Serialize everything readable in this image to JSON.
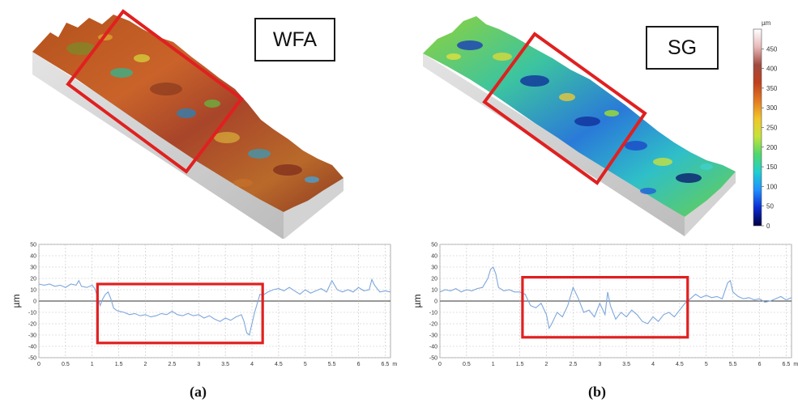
{
  "panels": {
    "a": {
      "tag": "WFA",
      "caption": "(a)"
    },
    "b": {
      "tag": "SG",
      "caption": "(b)"
    }
  },
  "colorbar": {
    "unit": "µm",
    "ticks": [
      "0",
      "50",
      "100",
      "150",
      "200",
      "250",
      "300",
      "350",
      "400",
      "450"
    ],
    "colors": [
      "#000040",
      "#0a2bd0",
      "#1f8fff",
      "#1ecfd0",
      "#4fd86a",
      "#c6e23a",
      "#f1c52a",
      "#e37a22",
      "#c0401e",
      "#a04a40",
      "#e8b8b8",
      "#ffffff"
    ]
  },
  "chart_data": [
    {
      "type": "line",
      "panel": "(a)",
      "ylabel": "µm",
      "xunit": "mm",
      "ylim": [
        -50,
        50
      ],
      "yticks": [
        -50,
        -40,
        -30,
        -20,
        -10,
        0,
        10,
        20,
        30,
        40,
        50
      ],
      "xlim": [
        0,
        6.6
      ],
      "xticks": [
        "0",
        "0.5",
        "1",
        "1.5",
        "2",
        "2.5",
        "3",
        "3.5",
        "4",
        "4.5",
        "5",
        "5.5",
        "6",
        "6.5"
      ],
      "grid": true,
      "line_color": "#7da7dc",
      "highlight": {
        "x": [
          1.1,
          4.2
        ],
        "y": [
          -37,
          15
        ],
        "color": "#e02020"
      },
      "x": [
        0,
        0.1,
        0.2,
        0.3,
        0.4,
        0.5,
        0.6,
        0.7,
        0.75,
        0.8,
        0.9,
        1.0,
        1.05,
        1.1,
        1.15,
        1.2,
        1.25,
        1.3,
        1.35,
        1.4,
        1.45,
        1.5,
        1.6,
        1.7,
        1.8,
        1.9,
        2.0,
        2.1,
        2.2,
        2.3,
        2.4,
        2.5,
        2.6,
        2.7,
        2.8,
        2.9,
        3.0,
        3.1,
        3.2,
        3.3,
        3.4,
        3.5,
        3.6,
        3.7,
        3.8,
        3.85,
        3.9,
        3.95,
        4.0,
        4.05,
        4.1,
        4.15,
        4.2,
        4.3,
        4.4,
        4.5,
        4.6,
        4.7,
        4.8,
        4.9,
        5.0,
        5.1,
        5.2,
        5.3,
        5.4,
        5.5,
        5.6,
        5.7,
        5.8,
        5.9,
        6.0,
        6.1,
        6.2,
        6.25,
        6.3,
        6.4,
        6.5,
        6.6
      ],
      "y": [
        15,
        14,
        15,
        13,
        14,
        12,
        15,
        14,
        18,
        13,
        12,
        14,
        11,
        4,
        -4,
        2,
        6,
        8,
        2,
        -6,
        -8,
        -9,
        -10,
        -12,
        -11,
        -13,
        -12,
        -14,
        -13,
        -11,
        -12,
        -9,
        -12,
        -13,
        -11,
        -13,
        -12,
        -15,
        -13,
        -16,
        -18,
        -15,
        -17,
        -14,
        -12,
        -18,
        -28,
        -30,
        -20,
        -10,
        -2,
        6,
        5,
        8,
        10,
        11,
        9,
        12,
        9,
        6,
        10,
        7,
        9,
        11,
        8,
        18,
        10,
        8,
        10,
        8,
        12,
        9,
        10,
        19,
        14,
        8,
        9,
        8
      ]
    },
    {
      "type": "line",
      "panel": "(b)",
      "ylabel": "µm",
      "xunit": "mm",
      "ylim": [
        -50,
        50
      ],
      "yticks": [
        -50,
        -40,
        -30,
        -20,
        -10,
        0,
        10,
        20,
        30,
        40,
        50
      ],
      "xlim": [
        0,
        6.6
      ],
      "xticks": [
        "0",
        "0.5",
        "1",
        "1.5",
        "2",
        "2.5",
        "3",
        "3.5",
        "4",
        "4.5",
        "5",
        "5.5",
        "6",
        "6.5"
      ],
      "grid": true,
      "line_color": "#7da7dc",
      "highlight": {
        "x": [
          1.55,
          4.65
        ],
        "y": [
          -32,
          21
        ],
        "color": "#e02020"
      },
      "x": [
        0,
        0.1,
        0.2,
        0.3,
        0.4,
        0.5,
        0.6,
        0.7,
        0.8,
        0.9,
        0.95,
        1.0,
        1.05,
        1.1,
        1.2,
        1.3,
        1.4,
        1.5,
        1.6,
        1.7,
        1.8,
        1.9,
        2.0,
        2.05,
        2.1,
        2.2,
        2.3,
        2.4,
        2.5,
        2.6,
        2.7,
        2.8,
        2.9,
        3.0,
        3.1,
        3.15,
        3.2,
        3.3,
        3.4,
        3.5,
        3.6,
        3.7,
        3.8,
        3.9,
        4.0,
        4.1,
        4.2,
        4.3,
        4.4,
        4.5,
        4.6,
        4.7,
        4.8,
        4.9,
        5.0,
        5.1,
        5.2,
        5.3,
        5.4,
        5.45,
        5.5,
        5.6,
        5.7,
        5.8,
        5.9,
        6.0,
        6.1,
        6.2,
        6.3,
        6.4,
        6.5,
        6.6
      ],
      "y": [
        8,
        10,
        9,
        11,
        8,
        10,
        9,
        11,
        12,
        20,
        28,
        30,
        24,
        12,
        9,
        10,
        8,
        8,
        6,
        -4,
        -6,
        -2,
        -12,
        -24,
        -20,
        -10,
        -14,
        -4,
        12,
        2,
        -10,
        -8,
        -14,
        -2,
        -12,
        8,
        -4,
        -16,
        -10,
        -14,
        -8,
        -12,
        -18,
        -20,
        -14,
        -18,
        -12,
        -10,
        -14,
        -8,
        -2,
        2,
        6,
        3,
        5,
        3,
        4,
        2,
        16,
        18,
        8,
        4,
        2,
        3,
        1,
        2,
        -1,
        0,
        2,
        4,
        1,
        3
      ]
    }
  ]
}
